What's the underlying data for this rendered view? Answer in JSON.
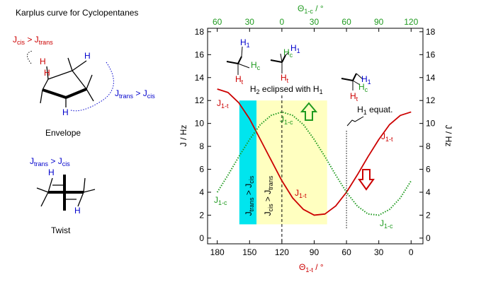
{
  "chart_data": {
    "type": "line",
    "title": "Karplus curve for Cyclopentanes",
    "xlabel": [
      "Θ",
      "1-t",
      " / °"
    ],
    "x2label": [
      "Θ",
      "1-c",
      " / °"
    ],
    "ylabel": "J / Hz",
    "y2label": "J / Hz",
    "x": [
      180,
      170,
      160,
      150,
      140,
      130,
      120,
      110,
      100,
      90,
      80,
      70,
      60,
      50,
      40,
      30,
      20,
      10,
      0
    ],
    "series": [
      {
        "name": [
          "J",
          "1-t"
        ],
        "color": "#cc0000",
        "style": "solid",
        "values": [
          13.0,
          12.7,
          11.8,
          10.4,
          8.6,
          6.8,
          5.0,
          3.5,
          2.5,
          2.0,
          2.1,
          2.8,
          4.0,
          5.5,
          7.1,
          8.6,
          9.9,
          10.7,
          11.0
        ]
      },
      {
        "name": [
          "J",
          "1-c"
        ],
        "color": "#1f9a1f",
        "style": "dotted",
        "values": [
          4.0,
          5.5,
          7.1,
          8.6,
          9.9,
          10.7,
          11.0,
          10.7,
          9.9,
          8.6,
          7.1,
          5.5,
          4.0,
          2.8,
          2.1,
          2.0,
          2.5,
          3.5,
          5.0
        ]
      }
    ],
    "xlim": [
      189,
      -11
    ],
    "xticks": [
      180,
      150,
      120,
      90,
      60,
      30,
      0
    ],
    "x2lim": [
      -69,
      131
    ],
    "x2ticks": [
      {
        "value": -60,
        "label": "60"
      },
      {
        "value": -30,
        "label": "30"
      },
      0,
      30,
      60,
      90,
      120
    ],
    "ylim": [
      -0.5,
      18.3
    ],
    "yticks": [
      0,
      2,
      4,
      6,
      8,
      10,
      12,
      14,
      16,
      18
    ],
    "y2lim": [
      -0.5,
      18.3
    ],
    "y2ticks": [
      0,
      2,
      4,
      6,
      8,
      10,
      12,
      14,
      16,
      18
    ],
    "bands": [
      {
        "x": [
          159.5,
          143.5
        ],
        "y": [
          1.2,
          12.0
        ],
        "color": "#00e5ee",
        "label": [
          "J",
          "trans",
          " > J",
          "cis"
        ]
      },
      {
        "x": [
          143.5,
          78
        ],
        "y": [
          1.2,
          12.0
        ],
        "color": "#ffffc0",
        "label": [
          "J",
          "cis",
          " > J",
          "trans"
        ]
      }
    ],
    "markers": [
      {
        "x": 120,
        "style": "dashed",
        "label": [
          "H",
          "2",
          " eclipsed with H",
          "1"
        ]
      },
      {
        "x": 60,
        "style": "dotted",
        "label": [
          "H",
          "1",
          " equat."
        ]
      }
    ],
    "conformer_labels": [
      [
        "H",
        "1"
      ],
      [
        "H",
        "c"
      ],
      [
        "H",
        "t"
      ]
    ]
  },
  "schemes": {
    "h": "H",
    "cis_gt_trans": [
      "J",
      "cis",
      " > J",
      "trans"
    ],
    "trans_gt_cis": [
      "J",
      "trans",
      " > J",
      "cis"
    ],
    "envelope": "Envelope",
    "twist": "Twist"
  }
}
